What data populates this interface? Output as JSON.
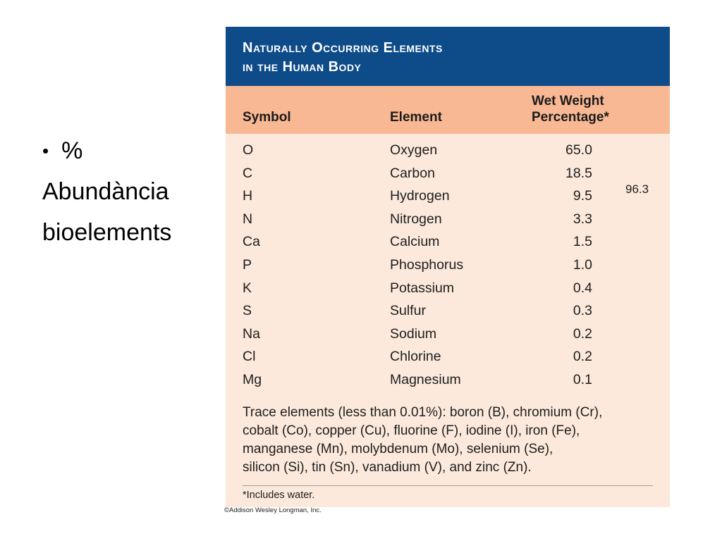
{
  "slide": {
    "bullet": "%",
    "lines": [
      "Abundància",
      "bioelements"
    ]
  },
  "figure": {
    "title_line1": "Naturally Occurring Elements",
    "title_line2": "in the Human Body",
    "headers": {
      "symbol": "Symbol",
      "element": "Element",
      "pct_line1": "Wet Weight",
      "pct_line2": "Percentage*"
    },
    "rows": [
      {
        "symbol": "O",
        "element": "Oxygen",
        "pct": "65.0"
      },
      {
        "symbol": "C",
        "element": "Carbon",
        "pct": "18.5"
      },
      {
        "symbol": "H",
        "element": "Hydrogen",
        "pct": "9.5"
      },
      {
        "symbol": "N",
        "element": "Nitrogen",
        "pct": "3.3"
      },
      {
        "symbol": "Ca",
        "element": "Calcium",
        "pct": "1.5"
      },
      {
        "symbol": "P",
        "element": "Phosphorus",
        "pct": "1.0"
      },
      {
        "symbol": "K",
        "element": "Potassium",
        "pct": "0.4"
      },
      {
        "symbol": "S",
        "element": "Sulfur",
        "pct": "0.3"
      },
      {
        "symbol": "Na",
        "element": "Sodium",
        "pct": "0.2"
      },
      {
        "symbol": "Cl",
        "element": "Chlorine",
        "pct": "0.2"
      },
      {
        "symbol": "Mg",
        "element": "Magnesium",
        "pct": "0.1"
      }
    ],
    "bracket_total": "96.3",
    "trace_lines": [
      "Trace elements (less than 0.01%): boron (B), chromium (Cr),",
      "cobalt (Co), copper (Cu), fluorine (F), iodine (I), iron (Fe),",
      "manganese (Mn), molybdenum (Mo), selenium (Se),",
      "silicon (Si), tin (Sn), vanadium (V), and zinc (Zn)."
    ],
    "footnote": "*Includes water.",
    "credit": "©Addison Wesley Longman, Inc.",
    "colors": {
      "title_bg": "#0e4b89",
      "header_bg": "#f9b894",
      "body_bg": "#fce9dc"
    }
  }
}
